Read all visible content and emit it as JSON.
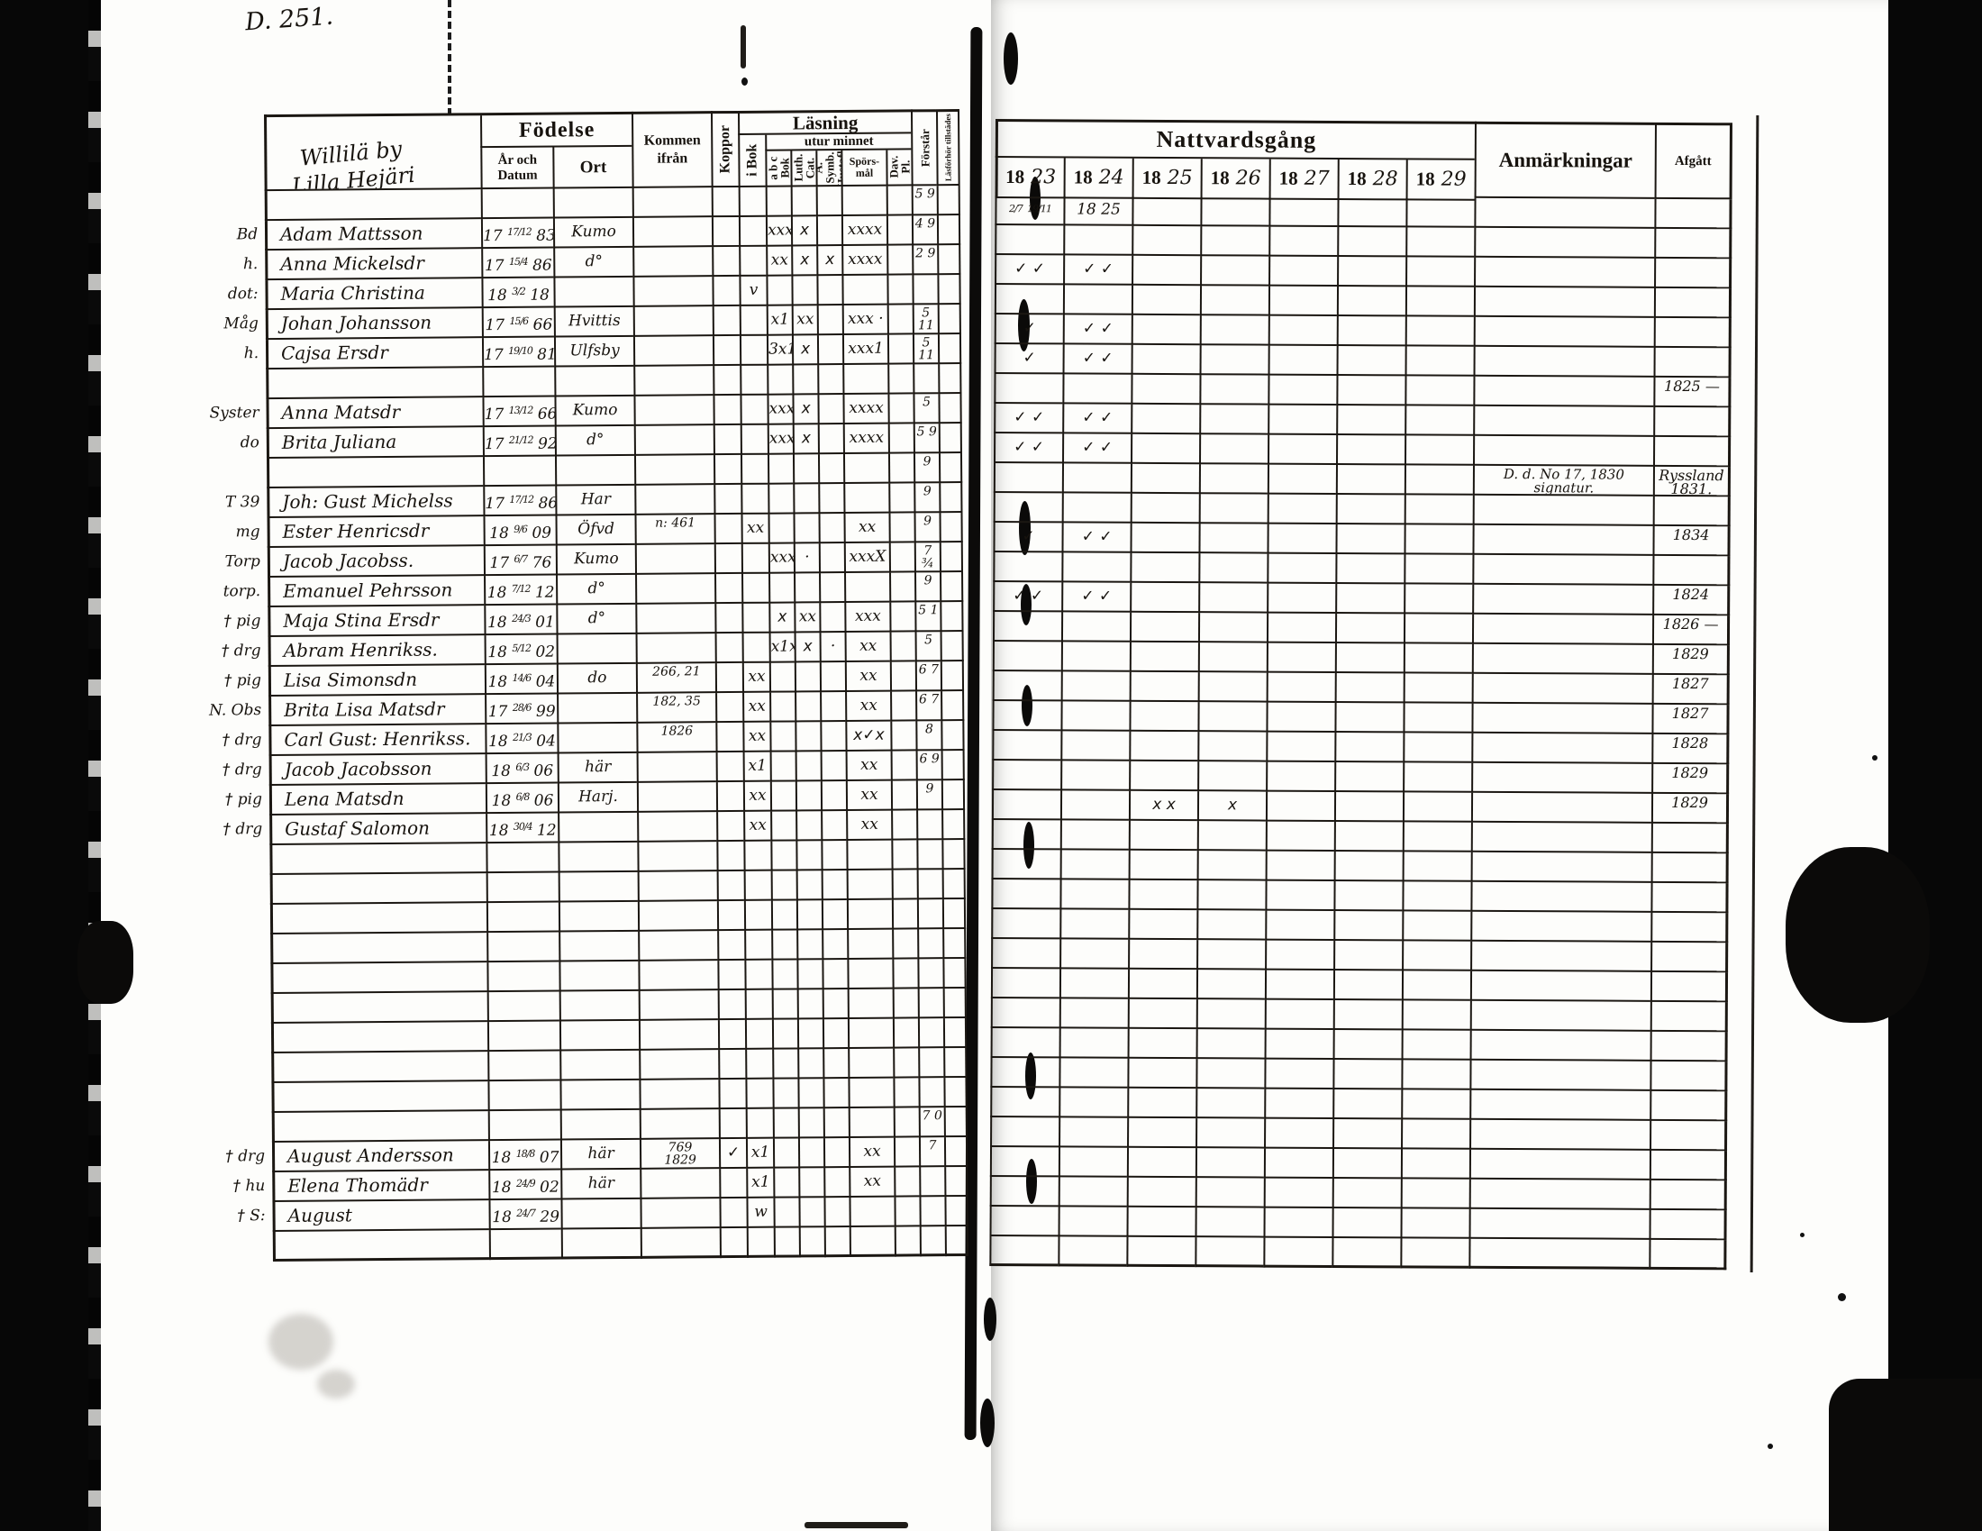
{
  "page_label": "D. 251.",
  "header": {
    "household_line1": "Willilä by",
    "household_line2": "Lilla Hejäri",
    "fodelse": "Födelse",
    "ar_och_datum": "År och Datum",
    "ort": "Ort",
    "kommen_ifran": "Kommen ifrån",
    "koppor": "Koppor",
    "lasning": "Läsning",
    "i_bok": "i Bok",
    "utur_minnet": "utur minnet",
    "abc_bok": "a b c Bok",
    "luth_cat": "Luth. Cat.",
    "symb_hustafl": "A. Symb. Hustafl.",
    "sporsmal": "Spörs-\nmål",
    "dav_ps": "Dav. Pl.",
    "forstar": "Förstår",
    "fold_col": "Läsförhör tillstädes",
    "nattvardsgang": "Nattvardsgång",
    "years": [
      "1823",
      "1824",
      "1825",
      "1826",
      "1827",
      "1828",
      "1829"
    ],
    "anmarkningar": "Anmärkningar",
    "afgatt": "Afgått"
  },
  "rows": [
    {
      "forstar": "5 9",
      "n23": "2/7 19/11",
      "n24": "18 25"
    },
    {
      "pre": "Bd",
      "name": "Adam Mattsson",
      "birth": "17 17/12 83",
      "ort": "Kumo",
      "abc": "xxx",
      "luth": "x",
      "spors": "xxxx",
      "forstar": "4 9"
    },
    {
      "pre": "h.",
      "name": "Anna Mickelsdr",
      "birth": "17 15/4 86",
      "ort": "d°",
      "abc": "xx",
      "luth": "x",
      "symb": "x",
      "spors": "xxxx",
      "forstar": "2 9",
      "n23": "✓ ✓",
      "n24": "✓ ✓"
    },
    {
      "pre": "dot:",
      "name": "Maria Christina",
      "birth": "18 3/2 18",
      "ibok": "v"
    },
    {
      "pre": "Måg",
      "name": "Johan Johansson",
      "birth": "17 15/6 66",
      "ort": "Hvittis",
      "abc": "x1",
      "luth": "xx",
      "spors": "xxx ·",
      "forstar": "5 11",
      "n23": "✓",
      "n24": "✓ ✓"
    },
    {
      "pre": "h.",
      "name": "Cajsa Ersdr",
      "birth": "17 19/10 81",
      "ort": "Ulfsby",
      "abc": "3x1",
      "luth": "x",
      "spors": "xxx1",
      "forstar": "5 11",
      "n23": "✓",
      "n24": "✓ ✓"
    },
    {
      "afg": "1825 —"
    },
    {
      "pre": "Syster",
      "name": "Anna Matsdr",
      "birth": "17 13/12 66",
      "ort": "Kumo",
      "abc": "xxx",
      "luth": "x",
      "spors": "xxxx",
      "forstar": "5",
      "n23": "✓ ✓",
      "n24": "✓ ✓"
    },
    {
      "pre": "do",
      "name": "Brita Juliana",
      "birth": "17 21/12 92",
      "ort": "d°",
      "abc": "xxx",
      "luth": "x",
      "spors": "xxxx",
      "forstar": "5 9",
      "n23": "✓ ✓",
      "n24": "✓ ✓"
    },
    {
      "forstar": "9",
      "anm": "D. d. No 17, 1830\nsignatur.",
      "afg": "Ryssland\n1831."
    },
    {
      "pre": "T 39",
      "name": "Joh: Gust Michelss",
      "birth": "17 17/12 86",
      "ort": "Har",
      "forstar": "9"
    },
    {
      "pre": "mg",
      "name": "Ester Henricsdr",
      "birth": "18 9/6 09",
      "ort": "Öfvd",
      "kom": "n: 461",
      "ibok": "xx",
      "spors": "xx",
      "forstar": "9",
      "n23": "✓",
      "n24": "✓ ✓",
      "afg": "1834"
    },
    {
      "pre": "Torp",
      "name": "Jacob Jacobss.",
      "birth": "17 6/7 76",
      "ort": "Kumo",
      "abc": "xxx",
      "luth": "·",
      "spors": "xxxX",
      "forstar": "7 ¾"
    },
    {
      "pre": "torp.",
      "name": "Emanuel Pehrsson",
      "birth": "18 7/12 12",
      "ort": "d°",
      "forstar": "9",
      "n23": "✓ ✓",
      "n24": "✓ ✓",
      "afg": "1824"
    },
    {
      "pre": "† pig",
      "name": "Maja Stina Ersdr",
      "birth": "18 24/3 01",
      "ort": "d°",
      "abc": "x",
      "luth": "xx",
      "spors": "xxx",
      "forstar": "5 1",
      "afg": "1826 —"
    },
    {
      "pre": "† drg",
      "name": "Abram Henrikss.",
      "birth": "18 5/12 02",
      "abc": "x1x",
      "luth": "x",
      "symb": "·",
      "spors": "xx",
      "forstar": "5",
      "afg": "1829"
    },
    {
      "pre": "† pig",
      "name": "Lisa Simonsdn",
      "birth": "18 14/6 04",
      "ort": "do",
      "kom": "266, 21",
      "ibok": "xx",
      "spors": "xx",
      "forstar": "6 7",
      "afg": "1827"
    },
    {
      "pre": "N. Obs",
      "name": "Brita Lisa Matsdr",
      "birth": "17 28/6 99",
      "kom": "182, 35",
      "ibok": "xx",
      "spors": "xx",
      "forstar": "6 7",
      "afg": "1827"
    },
    {
      "pre": "† drg",
      "name": "Carl Gust: Henrikss.",
      "birth": "18 21/3 04",
      "kom": "1826",
      "ibok": "xx",
      "spors": "x✓x",
      "forstar": "8",
      "afg": "1828"
    },
    {
      "pre": "† drg",
      "name": "Jacob Jacobsson",
      "birth": "18 6/3 06",
      "ort": "här",
      "ibok": "x1",
      "spors": "xx",
      "forstar": "6 9",
      "afg": "1829"
    },
    {
      "pre": "† pig",
      "name": "Lena Matsdn",
      "birth": "18 6/8 06",
      "ort": "Harj.",
      "ibok": "xx",
      "spors": "xx",
      "forstar": "9",
      "n25": "x x",
      "n26": "x",
      "afg": "1829"
    },
    {
      "pre": "† drg",
      "name": "Gustaf Salomon",
      "birth": "18 30/4 12",
      "ibok": "xx",
      "spors": "xx"
    },
    {},
    {},
    {},
    {},
    {},
    {},
    {},
    {},
    {},
    {
      "forstar": "7 0"
    },
    {
      "pre": "† drg",
      "name": "August Andersson",
      "birth": "18 18/8 07",
      "ort": "här",
      "kom": "769\n1829",
      "kop": "✓",
      "ibok": "x1",
      "spors": "xx",
      "forstar": "7"
    },
    {
      "pre": "† hu",
      "name": "Elena Thomädr",
      "birth": "18 24/9 02",
      "ort": "här",
      "ibok": "x1",
      "spors": "xx"
    },
    {
      "pre": "† S:",
      "name": "August",
      "birth": "18 24/7 29",
      "ibok": "w"
    },
    {}
  ]
}
